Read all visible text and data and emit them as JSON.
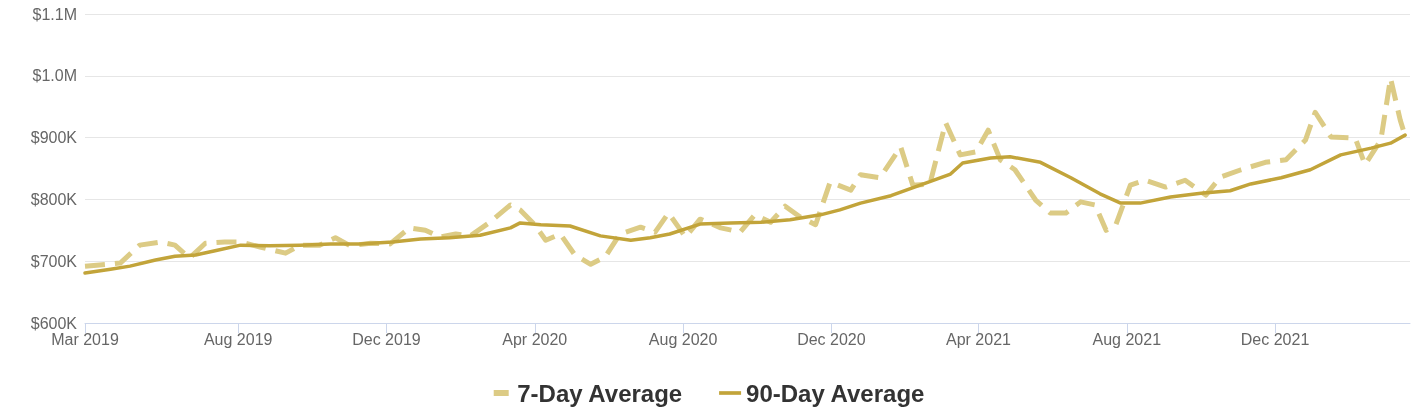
{
  "chart_data": {
    "type": "line",
    "xlim": [
      "2019-03-28",
      "2022-03-22"
    ],
    "xticks": [
      {
        "value": "2019-03-28",
        "label": "Mar 2019"
      },
      {
        "value": "2019-08-01",
        "label": "Aug 2019"
      },
      {
        "value": "2019-12-01",
        "label": "Dec 2019"
      },
      {
        "value": "2020-04-01",
        "label": "Apr 2020"
      },
      {
        "value": "2020-08-01",
        "label": "Aug 2020"
      },
      {
        "value": "2020-12-01",
        "label": "Dec 2020"
      },
      {
        "value": "2021-04-01",
        "label": "Apr 2021"
      },
      {
        "value": "2021-08-01",
        "label": "Aug 2021"
      },
      {
        "value": "2021-12-01",
        "label": "Dec 2021"
      }
    ],
    "ylim": [
      600000,
      1100000
    ],
    "yticks": [
      {
        "value": 600000,
        "label": "$600K"
      },
      {
        "value": 700000,
        "label": "$700K"
      },
      {
        "value": 800000,
        "label": "$800K"
      },
      {
        "value": 900000,
        "label": "$900K"
      },
      {
        "value": 1000000,
        "label": "$1.0M"
      },
      {
        "value": 1100000,
        "label": "$1.1M"
      }
    ],
    "grid": "y",
    "legend": "bottom",
    "marker": "none",
    "series": [
      {
        "name": "7-Day Average",
        "color": "#dccb85",
        "line_style": "dashed",
        "x": [
          "2019-03-28",
          "2019-04-09",
          "2019-04-26",
          "2019-05-12",
          "2019-05-29",
          "2019-06-10",
          "2019-06-22",
          "2019-07-05",
          "2019-07-21",
          "2019-08-03",
          "2019-08-19",
          "2019-09-09",
          "2019-09-21",
          "2019-10-07",
          "2019-10-20",
          "2019-11-01",
          "2019-11-18",
          "2019-12-04",
          "2019-12-20",
          "2020-01-02",
          "2020-01-14",
          "2020-01-27",
          "2020-02-08",
          "2020-02-24",
          "2020-03-12",
          "2020-03-20",
          "2020-04-01",
          "2020-04-10",
          "2020-04-22",
          "2020-05-04",
          "2020-05-17",
          "2020-05-29",
          "2020-06-10",
          "2020-06-27",
          "2020-07-09",
          "2020-07-20",
          "2020-08-03",
          "2020-08-15",
          "2020-09-01",
          "2020-09-17",
          "2020-09-29",
          "2020-10-12",
          "2020-10-24",
          "2020-11-05",
          "2020-11-18",
          "2020-11-30",
          "2020-12-17",
          "2020-12-25",
          "2021-01-10",
          "2021-01-27",
          "2021-02-06",
          "2021-02-20",
          "2021-03-05",
          "2021-03-17",
          "2021-03-30",
          "2021-04-09",
          "2021-04-19",
          "2021-05-01",
          "2021-05-18",
          "2021-05-30",
          "2021-06-12",
          "2021-06-24",
          "2021-07-06",
          "2021-07-15",
          "2021-07-23",
          "2021-08-04",
          "2021-08-16",
          "2021-09-02",
          "2021-09-18",
          "2021-10-05",
          "2021-10-17",
          "2021-11-03",
          "2021-11-23",
          "2021-12-10",
          "2021-12-26",
          "2022-01-03",
          "2022-01-16",
          "2022-02-05",
          "2022-02-13",
          "2022-02-26",
          "2022-03-06",
          "2022-03-14",
          "2022-03-18"
        ],
        "values": [
          692000,
          694000,
          697000,
          726000,
          731000,
          726000,
          705000,
          729000,
          731000,
          731000,
          723000,
          713000,
          726000,
          726000,
          738000,
          725000,
          729000,
          728000,
          754000,
          750000,
          739000,
          744000,
          741000,
          763000,
          791000,
          783000,
          759000,
          734000,
          744000,
          710000,
          695000,
          707000,
          744000,
          755000,
          747000,
          778000,
          739000,
          768000,
          754000,
          747000,
          775000,
          763000,
          789000,
          772000,
          759000,
          828000,
          815000,
          840000,
          835000,
          885000,
          823000,
          825000,
          924000,
          872000,
          877000,
          912000,
          864000,
          848000,
          799000,
          778000,
          778000,
          796000,
          791000,
          750000,
          759000,
          823000,
          831000,
          820000,
          831000,
          807000,
          836000,
          848000,
          860000,
          864000,
          896000,
          941000,
          901000,
          899000,
          856000,
          896000,
          996000,
          928000,
          903000
        ]
      },
      {
        "name": "90-Day Average",
        "color": "#c2a43a",
        "line_style": "solid",
        "x": [
          "2019-03-28",
          "2019-04-18",
          "2019-05-04",
          "2019-05-25",
          "2019-06-10",
          "2019-06-27",
          "2019-07-13",
          "2019-08-03",
          "2019-08-27",
          "2019-09-21",
          "2019-10-16",
          "2019-11-09",
          "2019-12-06",
          "2019-12-29",
          "2020-01-22",
          "2020-02-16",
          "2020-03-12",
          "2020-03-20",
          "2020-04-06",
          "2020-04-30",
          "2020-05-25",
          "2020-06-19",
          "2020-07-05",
          "2020-07-21",
          "2020-08-15",
          "2020-09-09",
          "2020-10-04",
          "2020-10-28",
          "2020-11-22",
          "2020-12-08",
          "2020-12-25",
          "2021-01-19",
          "2021-02-12",
          "2021-03-09",
          "2021-03-19",
          "2021-04-11",
          "2021-04-27",
          "2021-05-22",
          "2021-06-16",
          "2021-07-10",
          "2021-07-27",
          "2021-08-12",
          "2021-09-06",
          "2021-10-01",
          "2021-10-25",
          "2021-11-11",
          "2021-12-06",
          "2021-12-30",
          "2022-01-24",
          "2022-02-18",
          "2022-03-06",
          "2022-03-18"
        ],
        "values": [
          681000,
          687000,
          692000,
          702000,
          708000,
          710000,
          717000,
          726000,
          725000,
          726000,
          728000,
          728000,
          731000,
          736000,
          738000,
          742000,
          754000,
          762000,
          759000,
          757000,
          741000,
          734000,
          738000,
          744000,
          760000,
          762000,
          763000,
          767000,
          775000,
          783000,
          794000,
          806000,
          823000,
          841000,
          859000,
          867000,
          869000,
          860000,
          835000,
          809000,
          794000,
          794000,
          804000,
          810000,
          814000,
          825000,
          835000,
          848000,
          872000,
          883000,
          891000,
          904000
        ]
      }
    ]
  }
}
